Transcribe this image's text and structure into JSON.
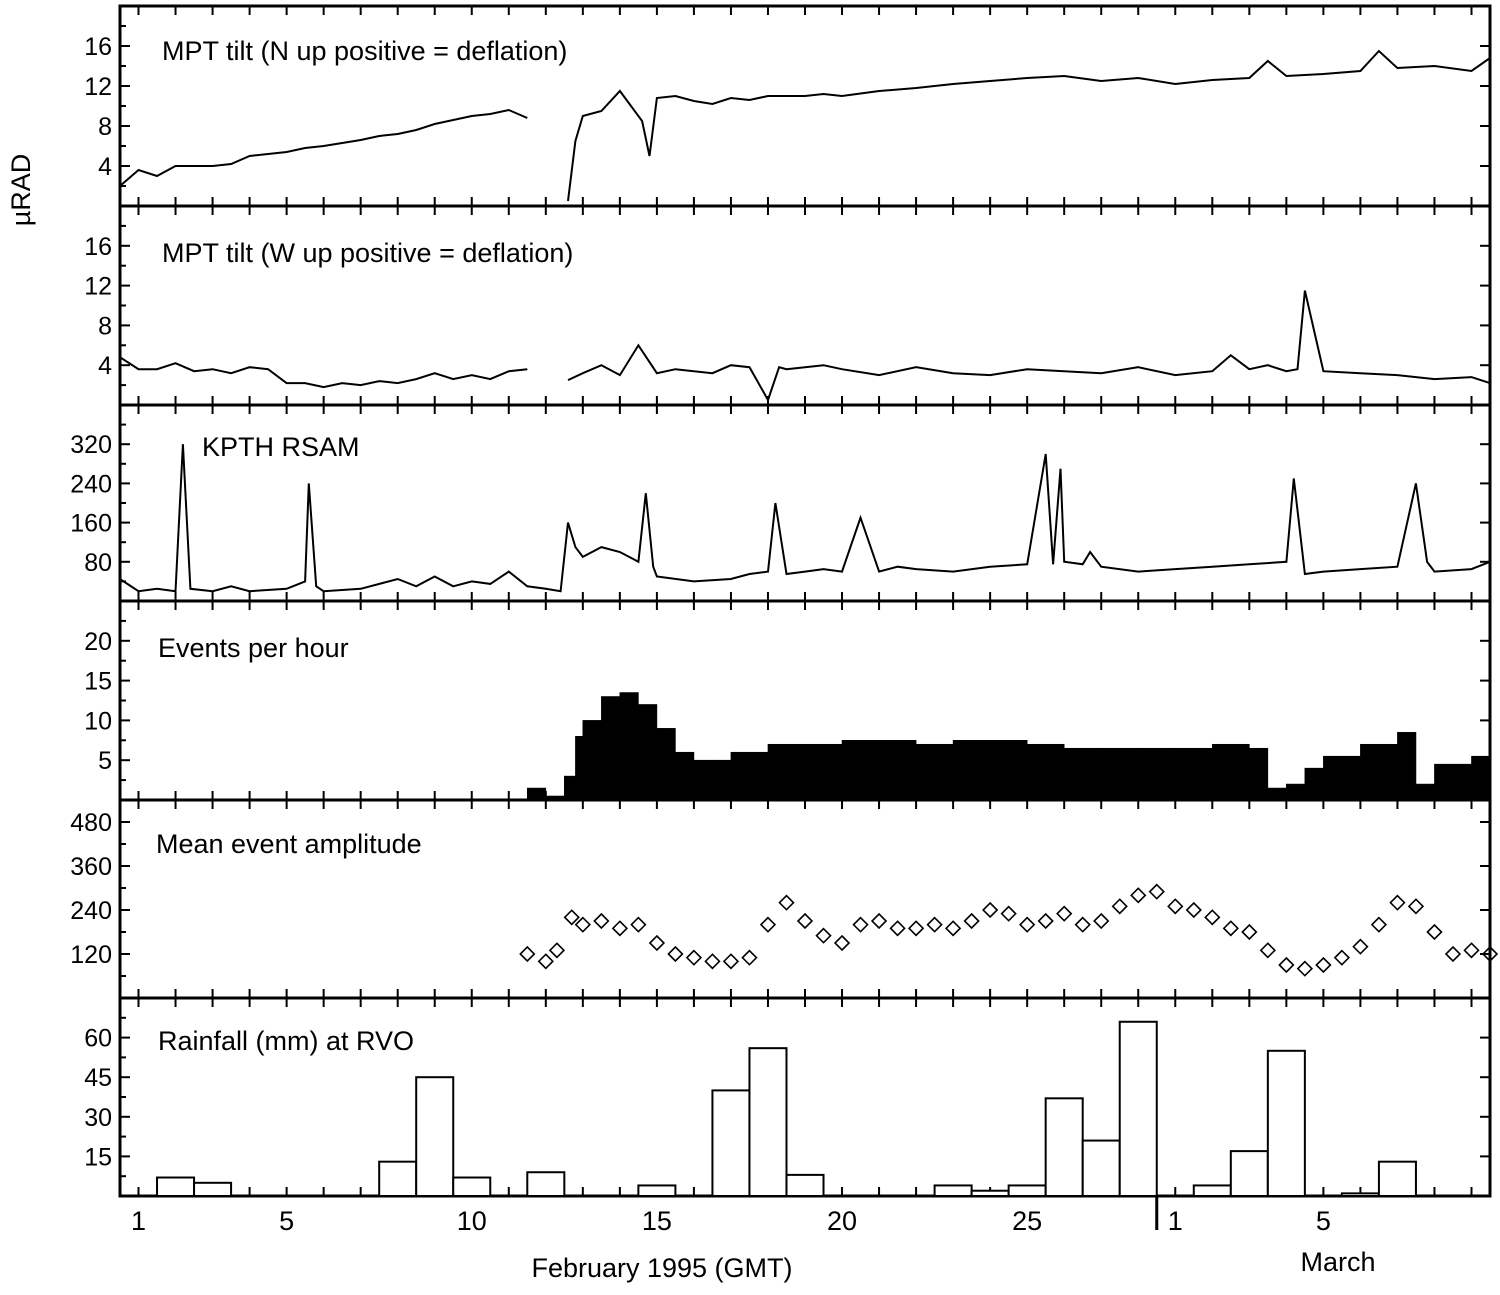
{
  "chart_data": {
    "type": "multi-panel time series",
    "xlabel": "February 1995 (GMT)",
    "xlabel_secondary": "March",
    "x_units": "day (1 = Feb 1; 29 = Mar 1)",
    "xlim": [
      0.5,
      37.5
    ],
    "x_tick_labels": [
      {
        "day": 1,
        "label": "1"
      },
      {
        "day": 5,
        "label": "5"
      },
      {
        "day": 10,
        "label": "10"
      },
      {
        "day": 15,
        "label": "15"
      },
      {
        "day": 20,
        "label": "20"
      },
      {
        "day": 25,
        "label": "25"
      },
      {
        "day": 29,
        "label": "1"
      },
      {
        "day": 33,
        "label": "5"
      }
    ],
    "month_divider_day": 28.5,
    "panels": [
      {
        "id": "tilt_n",
        "label": "MPT tilt (N up positive = deflation)",
        "ylabel": "µRAD",
        "type": "line",
        "ylim": [
          0,
          20
        ],
        "yticks": [
          4,
          8,
          12,
          16
        ],
        "segments": [
          {
            "x": [
              0.5,
              1.0,
              1.5,
              2.0,
              2.5,
              3.0,
              3.5,
              4.0,
              4.5,
              5.0,
              5.5,
              6.0,
              6.5,
              7.0,
              7.5,
              8.0,
              8.5,
              9.0,
              9.5,
              10.0,
              10.5,
              11.0,
              11.5
            ],
            "y": [
              2.0,
              3.6,
              3.0,
              4.0,
              4.0,
              4.0,
              4.2,
              5.0,
              5.2,
              5.4,
              5.8,
              6.0,
              6.3,
              6.6,
              7.0,
              7.2,
              7.6,
              8.2,
              8.6,
              9.0,
              9.2,
              9.6,
              8.8
            ]
          },
          {
            "x": [
              12.6,
              12.8,
              13.0,
              13.5,
              14.0,
              14.3,
              14.6,
              14.8,
              15.0,
              15.5,
              16.0,
              16.5,
              17.0,
              17.5,
              18.0,
              18.5,
              19.0,
              19.5,
              20.0,
              21.0,
              22.0,
              23.0,
              24.0,
              25.0,
              26.0,
              27.0,
              28.0,
              29.0,
              30.0,
              31.0,
              31.5,
              32.0,
              33.0,
              34.0,
              34.5,
              35.0,
              36.0,
              37.0,
              37.5
            ],
            "y": [
              0.5,
              6.5,
              9.0,
              9.5,
              11.5,
              10.0,
              8.5,
              5.0,
              10.8,
              11.0,
              10.5,
              10.2,
              10.8,
              10.6,
              11.0,
              11.0,
              11.0,
              11.2,
              11.0,
              11.5,
              11.8,
              12.2,
              12.5,
              12.8,
              13.0,
              12.5,
              12.8,
              12.2,
              12.6,
              12.8,
              14.5,
              13.0,
              13.2,
              13.5,
              15.5,
              13.8,
              14.0,
              13.5,
              14.8
            ]
          }
        ]
      },
      {
        "id": "tilt_w",
        "label": "MPT tilt (W up positive = deflation)",
        "type": "line",
        "ylim": [
          0,
          20
        ],
        "yticks": [
          4,
          8,
          12,
          16
        ],
        "segments": [
          {
            "x": [
              0.5,
              1.0,
              1.5,
              2.0,
              2.5,
              3.0,
              3.5,
              4.0,
              4.5,
              5.0,
              5.5,
              6.0,
              6.5,
              7.0,
              7.5,
              8.0,
              8.5,
              9.0,
              9.5,
              10.0,
              10.5,
              11.0,
              11.5
            ],
            "y": [
              4.8,
              3.6,
              3.6,
              4.2,
              3.4,
              3.6,
              3.2,
              3.8,
              3.6,
              2.2,
              2.2,
              1.8,
              2.2,
              2.0,
              2.4,
              2.2,
              2.6,
              3.2,
              2.6,
              3.0,
              2.6,
              3.4,
              3.6
            ]
          },
          {
            "x": [
              12.6,
              13.0,
              13.5,
              14.0,
              14.5,
              15.0,
              15.5,
              16.0,
              16.5,
              17.0,
              17.5,
              18.0,
              18.3,
              18.5,
              19.0,
              19.5,
              20.0,
              21.0,
              22.0,
              23.0,
              24.0,
              25.0,
              26.0,
              27.0,
              28.0,
              29.0,
              30.0,
              30.5,
              31.0,
              31.5,
              32.0,
              32.3,
              32.5,
              33.0,
              34.0,
              35.0,
              36.0,
              37.0,
              37.5
            ],
            "y": [
              2.5,
              3.2,
              4.0,
              3.0,
              6.0,
              3.2,
              3.6,
              3.4,
              3.2,
              4.0,
              3.8,
              0.5,
              3.8,
              3.6,
              3.8,
              4.0,
              3.6,
              3.0,
              3.8,
              3.2,
              3.0,
              3.6,
              3.4,
              3.2,
              3.8,
              3.0,
              3.4,
              5.0,
              3.6,
              4.0,
              3.4,
              3.6,
              11.5,
              3.4,
              3.2,
              3.0,
              2.6,
              2.8,
              2.2
            ]
          }
        ]
      },
      {
        "id": "rsam",
        "label": "KPTH  RSAM",
        "type": "line",
        "ylim": [
          0,
          400
        ],
        "yticks": [
          80,
          160,
          240,
          320
        ],
        "ytick_labels": [
          "80",
          "160",
          "240",
          "320"
        ],
        "x": [
          0.5,
          1.0,
          1.5,
          2.0,
          2.2,
          2.4,
          3.0,
          3.5,
          4.0,
          5.0,
          5.5,
          5.6,
          5.8,
          6.0,
          7.0,
          8.0,
          8.5,
          9.0,
          9.5,
          10.0,
          10.5,
          11.0,
          11.5,
          12.0,
          12.4,
          12.6,
          12.8,
          13.0,
          13.5,
          14.0,
          14.5,
          14.7,
          14.9,
          15.0,
          16.0,
          17.0,
          17.5,
          18.0,
          18.2,
          18.5,
          19.0,
          19.5,
          20.0,
          20.5,
          21.0,
          21.5,
          22.0,
          23.0,
          24.0,
          25.0,
          25.5,
          25.7,
          25.9,
          26.0,
          26.5,
          26.7,
          27.0,
          28.0,
          29.0,
          30.0,
          31.0,
          32.0,
          32.2,
          32.5,
          33.0,
          34.0,
          35.0,
          35.5,
          35.8,
          36.0,
          37.0,
          37.5
        ],
        "y": [
          45,
          20,
          25,
          20,
          320,
          25,
          20,
          30,
          20,
          25,
          40,
          240,
          30,
          20,
          25,
          45,
          30,
          50,
          30,
          40,
          35,
          60,
          30,
          25,
          20,
          160,
          110,
          90,
          110,
          100,
          80,
          220,
          70,
          50,
          40,
          45,
          55,
          60,
          200,
          55,
          60,
          65,
          60,
          170,
          60,
          70,
          65,
          60,
          70,
          75,
          300,
          75,
          270,
          80,
          75,
          100,
          70,
          60,
          65,
          70,
          75,
          80,
          250,
          55,
          60,
          65,
          70,
          240,
          80,
          60,
          65,
          80
        ]
      },
      {
        "id": "events",
        "label": "Events per hour",
        "type": "bar",
        "ylim": [
          0,
          25
        ],
        "yticks": [
          5,
          10,
          15,
          20
        ],
        "x": [
          11.5,
          12.0,
          12.5,
          12.8,
          13.0,
          13.5,
          14.0,
          14.5,
          15.0,
          15.5,
          16.0,
          16.5,
          17.0,
          18.0,
          19.0,
          20.0,
          21.0,
          22.0,
          23.0,
          24.0,
          25.0,
          26.0,
          27.0,
          28.0,
          29.0,
          30.0,
          31.0,
          31.5,
          32.0,
          32.5,
          33.0,
          34.0,
          35.0,
          35.5,
          36.0,
          37.0
        ],
        "values": [
          1.5,
          0.5,
          3.0,
          8.0,
          10.0,
          13.0,
          13.5,
          12.0,
          9.0,
          6.0,
          5.0,
          5.0,
          6.0,
          7.0,
          7.0,
          7.5,
          7.5,
          7.0,
          7.5,
          7.5,
          7.0,
          6.5,
          6.5,
          6.5,
          6.5,
          7.0,
          6.5,
          1.5,
          2.0,
          4.0,
          5.5,
          7.0,
          8.5,
          2.0,
          4.5,
          5.5
        ]
      },
      {
        "id": "amplitude",
        "label": "Mean event amplitude",
        "type": "scatter",
        "ylim": [
          0,
          540
        ],
        "yticks": [
          120,
          240,
          360,
          480
        ],
        "x": [
          11.5,
          12.0,
          12.3,
          12.7,
          13.0,
          13.5,
          14.0,
          14.5,
          15.0,
          15.5,
          16.0,
          16.5,
          17.0,
          17.5,
          18.0,
          18.5,
          19.0,
          19.5,
          20.0,
          20.5,
          21.0,
          21.5,
          22.0,
          22.5,
          23.0,
          23.5,
          24.0,
          24.5,
          25.0,
          25.5,
          26.0,
          26.5,
          27.0,
          27.5,
          28.0,
          28.5,
          29.0,
          29.5,
          30.0,
          30.5,
          31.0,
          31.5,
          32.0,
          32.5,
          33.0,
          33.5,
          34.0,
          34.5,
          35.0,
          35.5,
          36.0,
          36.5,
          37.0,
          37.5
        ],
        "y": [
          120,
          100,
          130,
          220,
          200,
          210,
          190,
          200,
          150,
          120,
          110,
          100,
          100,
          110,
          200,
          260,
          210,
          170,
          150,
          200,
          210,
          190,
          190,
          200,
          190,
          210,
          240,
          230,
          200,
          210,
          230,
          200,
          210,
          250,
          280,
          290,
          250,
          240,
          220,
          190,
          180,
          130,
          90,
          80,
          90,
          110,
          140,
          200,
          260,
          250,
          180,
          120,
          130,
          120
        ]
      },
      {
        "id": "rainfall",
        "label": "Rainfall (mm) at RVO",
        "type": "bar",
        "ylim": [
          0,
          75
        ],
        "yticks": [
          15,
          30,
          45,
          60
        ],
        "bin_start_day": [
          0.5,
          1.5,
          2.5,
          3.5,
          4.5,
          5.5,
          6.5,
          7.5,
          8.5,
          9.5,
          10.5,
          11.5,
          12.5,
          13.5,
          14.5,
          15.5,
          16.5,
          17.5,
          18.5,
          19.5,
          20.5,
          21.5,
          22.5,
          23.5,
          24.5,
          25.5,
          26.5,
          27.5,
          28.5,
          29.5,
          30.5,
          31.5,
          32.5,
          33.5,
          34.5,
          35.5,
          36.5
        ],
        "values": [
          0,
          7,
          5,
          0,
          0,
          0,
          0,
          13,
          45,
          7,
          0,
          9,
          0,
          0,
          4,
          0,
          40,
          56,
          8,
          0,
          0,
          0,
          4,
          2,
          4,
          37,
          21,
          66,
          0,
          4,
          17,
          55,
          0,
          1,
          13,
          0,
          0
        ]
      }
    ]
  }
}
